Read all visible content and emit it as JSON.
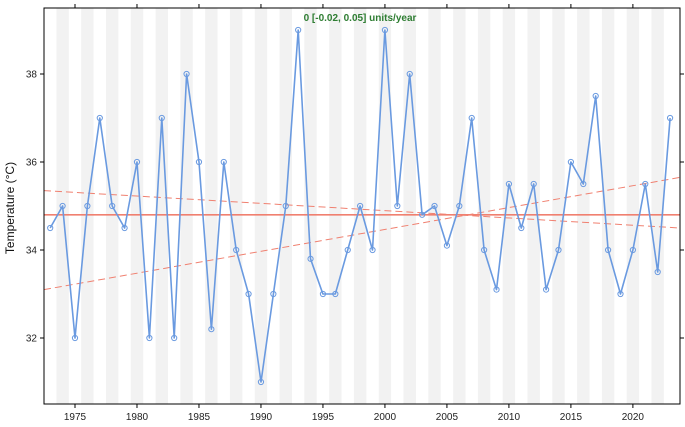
{
  "chart_data": {
    "type": "line",
    "title": "",
    "xlabel": "",
    "ylabel": "Temperature (°C)",
    "annotation": "0 [-0.02, 0.05] units/year",
    "xlim": [
      1972.5,
      2023.8
    ],
    "ylim": [
      30.5,
      39.5
    ],
    "x_ticks": [
      1975,
      1980,
      1985,
      1990,
      1995,
      2000,
      2005,
      2010,
      2015,
      2020
    ],
    "y_ticks": [
      32,
      34,
      36,
      38
    ],
    "grid": "alternating vertical bands per year",
    "series": [
      {
        "x": [
          1973,
          1974,
          1975,
          1976,
          1977,
          1978,
          1979,
          1980,
          1981,
          1982,
          1983,
          1984,
          1985,
          1986,
          1987,
          1988,
          1989,
          1990,
          1991,
          1992,
          1993,
          1994,
          1995,
          1996,
          1997,
          1998,
          1999,
          2000,
          2001,
          2002,
          2003,
          2004,
          2005,
          2006,
          2007,
          2008,
          2009,
          2010,
          2011,
          2012,
          2013,
          2014,
          2015,
          2016,
          2017,
          2018,
          2019,
          2020,
          2021,
          2022,
          2023
        ],
        "values": [
          34.5,
          35.0,
          32.0,
          35.0,
          37.0,
          35.0,
          34.5,
          36.0,
          32.0,
          37.0,
          32.0,
          38.0,
          36.0,
          32.2,
          36.0,
          34.0,
          33.0,
          31.0,
          33.0,
          35.0,
          39.0,
          33.8,
          33.0,
          33.0,
          34.0,
          35.0,
          34.0,
          39.0,
          35.0,
          38.0,
          34.8,
          35.0,
          34.1,
          35.0,
          37.0,
          34.0,
          33.1,
          35.5,
          34.5,
          35.5,
          33.1,
          34.0,
          36.0,
          35.5,
          37.5,
          34.0,
          33.0,
          34.0,
          35.5,
          33.5,
          37.0
        ]
      }
    ],
    "trend": {
      "median": 34.8,
      "lower_start": 33.1,
      "lower_end": 35.65,
      "upper_start": 35.35,
      "upper_end": 34.5
    },
    "colors": {
      "line": "#6a9ae0",
      "marker": "#6a9ae0",
      "trend": "#f08070",
      "band": "#f2f2f2",
      "annotation": "#2e7d32"
    }
  }
}
